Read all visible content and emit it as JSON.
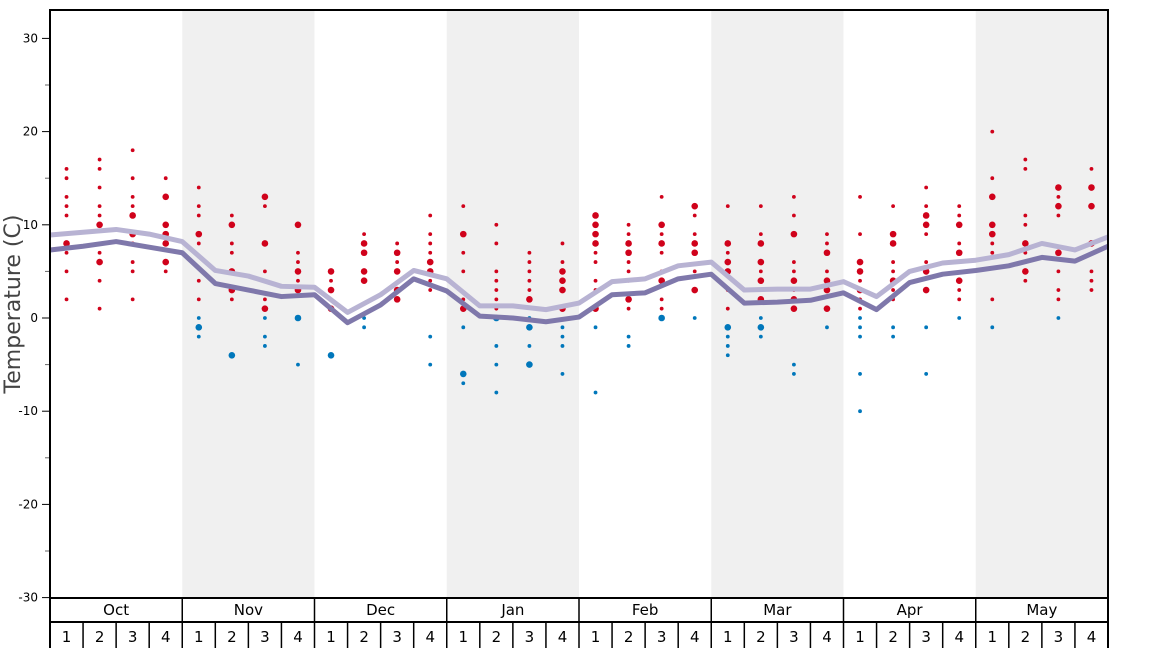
{
  "chart_data": {
    "type": "scatter",
    "title": "",
    "xlabel": "",
    "ylabel": "Temperature (C)",
    "ylim": [
      -30,
      30
    ],
    "yticks_major": [
      -30,
      -20,
      -10,
      0,
      10,
      20,
      30
    ],
    "ytick_labels": [
      "-30",
      "-20",
      "-10",
      "0",
      "10",
      "20",
      "30"
    ],
    "yticks_minor_step": 5,
    "months": [
      "Oct",
      "Nov",
      "Dec",
      "Jan",
      "Feb",
      "Mar",
      "Apr",
      "May"
    ],
    "weeks": [
      "1",
      "2",
      "3",
      "4"
    ],
    "colors": {
      "above_zero": "#d0021b",
      "at_or_below_zero": "#0077bb",
      "line_upper": "#b8b3d3",
      "line_lower": "#7f78ab",
      "band": "#f0f0f0"
    },
    "lines": [
      {
        "name": "upper",
        "values": [
          8.9,
          9.2,
          9.5,
          9.0,
          8.2,
          5.1,
          4.5,
          3.4,
          3.3,
          0.6,
          2.5,
          5.1,
          4.2,
          1.3,
          1.3,
          0.9,
          1.6,
          3.9,
          4.2,
          5.6,
          6.0,
          3.0,
          3.1,
          3.1,
          3.9,
          2.3,
          5.0,
          5.9,
          6.2,
          6.8,
          8.0,
          7.3,
          8.7
        ]
      },
      {
        "name": "lower",
        "values": [
          7.3,
          7.7,
          8.2,
          7.6,
          7.0,
          3.7,
          3.0,
          2.3,
          2.5,
          -0.5,
          1.4,
          4.2,
          2.9,
          0.2,
          0.0,
          -0.4,
          0.1,
          2.5,
          2.7,
          4.2,
          4.7,
          1.6,
          1.7,
          1.9,
          2.7,
          0.9,
          3.8,
          4.7,
          5.1,
          5.6,
          6.5,
          6.1,
          7.7
        ]
      }
    ],
    "point_note": "each weekly column: [temperature, count] where count 2 = larger dot",
    "points": [
      [
        [
          16,
          1
        ],
        [
          15,
          1
        ],
        [
          13,
          1
        ],
        [
          12,
          1
        ],
        [
          11,
          1
        ],
        [
          9,
          1
        ],
        [
          8,
          2
        ],
        [
          7,
          1
        ],
        [
          5,
          1
        ],
        [
          2,
          1
        ]
      ],
      [
        [
          17,
          1
        ],
        [
          16,
          1
        ],
        [
          14,
          1
        ],
        [
          12,
          1
        ],
        [
          11,
          1
        ],
        [
          10,
          2
        ],
        [
          7,
          1
        ],
        [
          6,
          2
        ],
        [
          4,
          1
        ],
        [
          1,
          1
        ]
      ],
      [
        [
          18,
          1
        ],
        [
          15,
          1
        ],
        [
          13,
          1
        ],
        [
          12,
          1
        ],
        [
          11,
          2
        ],
        [
          9,
          2
        ],
        [
          8,
          1
        ],
        [
          6,
          1
        ],
        [
          5,
          1
        ],
        [
          2,
          1
        ]
      ],
      [
        [
          15,
          1
        ],
        [
          13,
          2
        ],
        [
          10,
          2
        ],
        [
          9,
          2
        ],
        [
          8,
          2
        ],
        [
          6,
          2
        ],
        [
          5,
          1
        ]
      ],
      [
        [
          14,
          1
        ],
        [
          12,
          1
        ],
        [
          11,
          1
        ],
        [
          9,
          2
        ],
        [
          8,
          1
        ],
        [
          4,
          1
        ],
        [
          2,
          1
        ],
        [
          0,
          1
        ],
        [
          -1,
          2
        ],
        [
          -2,
          1
        ]
      ],
      [
        [
          11,
          1
        ],
        [
          10,
          2
        ],
        [
          8,
          1
        ],
        [
          7,
          1
        ],
        [
          5,
          2
        ],
        [
          3,
          2
        ],
        [
          2,
          1
        ],
        [
          -4,
          2
        ]
      ],
      [
        [
          13,
          2
        ],
        [
          12,
          1
        ],
        [
          8,
          2
        ],
        [
          5,
          1
        ],
        [
          2,
          1
        ],
        [
          1,
          2
        ],
        [
          0,
          1
        ],
        [
          -2,
          1
        ],
        [
          -3,
          1
        ]
      ],
      [
        [
          10,
          2
        ],
        [
          7,
          1
        ],
        [
          6,
          1
        ],
        [
          5,
          2
        ],
        [
          4,
          1
        ],
        [
          3,
          2
        ],
        [
          0,
          2
        ],
        [
          -5,
          1
        ]
      ],
      [
        [
          5,
          2
        ],
        [
          4,
          1
        ],
        [
          3,
          2
        ],
        [
          2,
          1
        ],
        [
          1,
          2
        ],
        [
          -4,
          2
        ]
      ],
      [
        [
          9,
          1
        ],
        [
          8,
          2
        ],
        [
          7,
          2
        ],
        [
          5,
          2
        ],
        [
          4,
          2
        ],
        [
          0,
          1
        ],
        [
          -1,
          1
        ]
      ],
      [
        [
          8,
          1
        ],
        [
          7,
          2
        ],
        [
          6,
          1
        ],
        [
          5,
          2
        ],
        [
          3,
          2
        ],
        [
          2,
          2
        ]
      ],
      [
        [
          11,
          1
        ],
        [
          9,
          1
        ],
        [
          8,
          1
        ],
        [
          7,
          1
        ],
        [
          6,
          2
        ],
        [
          5,
          2
        ],
        [
          4,
          1
        ],
        [
          3,
          1
        ],
        [
          -2,
          1
        ],
        [
          -5,
          1
        ]
      ],
      [
        [
          12,
          1
        ],
        [
          9,
          2
        ],
        [
          7,
          1
        ],
        [
          5,
          1
        ],
        [
          2,
          1
        ],
        [
          1,
          2
        ],
        [
          -1,
          1
        ],
        [
          -6,
          2
        ],
        [
          -7,
          1
        ]
      ],
      [
        [
          10,
          1
        ],
        [
          8,
          1
        ],
        [
          5,
          1
        ],
        [
          4,
          1
        ],
        [
          3,
          1
        ],
        [
          2,
          1
        ],
        [
          1,
          1
        ],
        [
          0,
          2
        ],
        [
          -3,
          1
        ],
        [
          -5,
          1
        ],
        [
          -8,
          1
        ]
      ],
      [
        [
          7,
          1
        ],
        [
          6,
          1
        ],
        [
          5,
          1
        ],
        [
          4,
          1
        ],
        [
          3,
          1
        ],
        [
          2,
          2
        ],
        [
          0,
          1
        ],
        [
          -1,
          2
        ],
        [
          -3,
          1
        ],
        [
          -5,
          2
        ]
      ],
      [
        [
          8,
          1
        ],
        [
          6,
          1
        ],
        [
          5,
          2
        ],
        [
          4,
          2
        ],
        [
          3,
          2
        ],
        [
          1,
          2
        ],
        [
          -1,
          1
        ],
        [
          -2,
          1
        ],
        [
          -3,
          1
        ],
        [
          -6,
          1
        ]
      ],
      [
        [
          11,
          2
        ],
        [
          10,
          2
        ],
        [
          9,
          2
        ],
        [
          8,
          2
        ],
        [
          7,
          1
        ],
        [
          6,
          1
        ],
        [
          4,
          1
        ],
        [
          3,
          1
        ],
        [
          1,
          2
        ],
        [
          -1,
          1
        ],
        [
          -8,
          1
        ]
      ],
      [
        [
          10,
          1
        ],
        [
          9,
          1
        ],
        [
          8,
          2
        ],
        [
          7,
          2
        ],
        [
          6,
          1
        ],
        [
          5,
          1
        ],
        [
          4,
          1
        ],
        [
          2,
          2
        ],
        [
          1,
          1
        ],
        [
          -2,
          1
        ],
        [
          -3,
          1
        ]
      ],
      [
        [
          13,
          1
        ],
        [
          10,
          2
        ],
        [
          9,
          1
        ],
        [
          8,
          2
        ],
        [
          7,
          1
        ],
        [
          5,
          1
        ],
        [
          4,
          2
        ],
        [
          2,
          1
        ],
        [
          1,
          1
        ],
        [
          0,
          2
        ]
      ],
      [
        [
          12,
          2
        ],
        [
          11,
          1
        ],
        [
          9,
          1
        ],
        [
          8,
          2
        ],
        [
          7,
          2
        ],
        [
          5,
          1
        ],
        [
          3,
          2
        ],
        [
          0,
          1
        ]
      ],
      [
        [
          12,
          1
        ],
        [
          8,
          2
        ],
        [
          7,
          1
        ],
        [
          6,
          2
        ],
        [
          5,
          2
        ],
        [
          3,
          1
        ],
        [
          1,
          1
        ],
        [
          -1,
          2
        ],
        [
          -2,
          1
        ],
        [
          -3,
          1
        ],
        [
          -4,
          1
        ]
      ],
      [
        [
          12,
          1
        ],
        [
          9,
          1
        ],
        [
          8,
          2
        ],
        [
          6,
          2
        ],
        [
          5,
          1
        ],
        [
          4,
          2
        ],
        [
          3,
          1
        ],
        [
          2,
          2
        ],
        [
          0,
          1
        ],
        [
          -1,
          2
        ],
        [
          -2,
          1
        ]
      ],
      [
        [
          13,
          1
        ],
        [
          11,
          1
        ],
        [
          9,
          2
        ],
        [
          6,
          1
        ],
        [
          5,
          1
        ],
        [
          4,
          2
        ],
        [
          3,
          1
        ],
        [
          2,
          2
        ],
        [
          1,
          2
        ],
        [
          -5,
          1
        ],
        [
          -6,
          1
        ]
      ],
      [
        [
          9,
          1
        ],
        [
          8,
          1
        ],
        [
          7,
          2
        ],
        [
          5,
          1
        ],
        [
          4,
          2
        ],
        [
          3,
          2
        ],
        [
          1,
          2
        ],
        [
          -1,
          1
        ]
      ],
      [
        [
          13,
          1
        ],
        [
          9,
          1
        ],
        [
          6,
          2
        ],
        [
          5,
          2
        ],
        [
          4,
          1
        ],
        [
          3,
          2
        ],
        [
          2,
          1
        ],
        [
          1,
          1
        ],
        [
          0,
          1
        ],
        [
          -1,
          1
        ],
        [
          -2,
          1
        ],
        [
          -6,
          1
        ],
        [
          -10,
          1
        ]
      ],
      [
        [
          12,
          1
        ],
        [
          9,
          2
        ],
        [
          8,
          2
        ],
        [
          6,
          1
        ],
        [
          5,
          1
        ],
        [
          4,
          2
        ],
        [
          3,
          1
        ],
        [
          2,
          1
        ],
        [
          -1,
          1
        ],
        [
          -2,
          1
        ]
      ],
      [
        [
          14,
          1
        ],
        [
          12,
          1
        ],
        [
          11,
          2
        ],
        [
          10,
          2
        ],
        [
          9,
          1
        ],
        [
          6,
          1
        ],
        [
          5,
          2
        ],
        [
          3,
          2
        ],
        [
          -1,
          1
        ],
        [
          -6,
          1
        ]
      ],
      [
        [
          12,
          1
        ],
        [
          11,
          1
        ],
        [
          10,
          2
        ],
        [
          8,
          1
        ],
        [
          7,
          2
        ],
        [
          6,
          1
        ],
        [
          4,
          2
        ],
        [
          3,
          1
        ],
        [
          2,
          1
        ],
        [
          0,
          1
        ]
      ],
      [
        [
          20,
          1
        ],
        [
          15,
          1
        ],
        [
          13,
          2
        ],
        [
          10,
          2
        ],
        [
          9,
          2
        ],
        [
          8,
          1
        ],
        [
          7,
          1
        ],
        [
          2,
          1
        ],
        [
          -1,
          1
        ]
      ],
      [
        [
          17,
          1
        ],
        [
          16,
          1
        ],
        [
          11,
          1
        ],
        [
          10,
          1
        ],
        [
          8,
          2
        ],
        [
          7,
          1
        ],
        [
          6,
          1
        ],
        [
          5,
          2
        ],
        [
          4,
          1
        ]
      ],
      [
        [
          14,
          2
        ],
        [
          13,
          1
        ],
        [
          12,
          2
        ],
        [
          11,
          1
        ],
        [
          7,
          2
        ],
        [
          5,
          1
        ],
        [
          3,
          1
        ],
        [
          2,
          1
        ],
        [
          0,
          1
        ]
      ],
      [
        [
          16,
          1
        ],
        [
          14,
          2
        ],
        [
          12,
          2
        ],
        [
          8,
          2
        ],
        [
          5,
          1
        ],
        [
          4,
          1
        ],
        [
          3,
          1
        ]
      ]
    ]
  }
}
